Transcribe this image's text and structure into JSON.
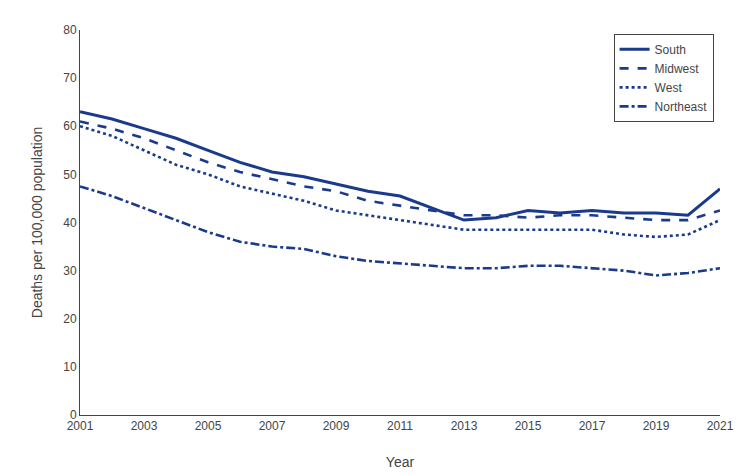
{
  "chart_data": {
    "type": "line",
    "x": [
      2001,
      2002,
      2003,
      2004,
      2005,
      2006,
      2007,
      2008,
      2009,
      2010,
      2011,
      2012,
      2013,
      2014,
      2015,
      2016,
      2017,
      2018,
      2019,
      2020,
      2021
    ],
    "series": [
      {
        "name": "South",
        "color": "#1a3a8c",
        "line_style": "solid",
        "values": [
          63.0,
          61.5,
          59.5,
          57.5,
          55.0,
          52.5,
          50.5,
          49.5,
          48.0,
          46.5,
          45.5,
          43.0,
          40.5,
          41.0,
          42.5,
          42.0,
          42.5,
          42.0,
          42.0,
          41.5,
          47.0
        ]
      },
      {
        "name": "Midwest",
        "color": "#1a3a8c",
        "line_style": "dashed",
        "values": [
          61.0,
          59.5,
          57.5,
          55.0,
          52.5,
          50.5,
          49.0,
          47.5,
          46.5,
          44.5,
          43.5,
          42.5,
          41.5,
          41.5,
          41.0,
          41.5,
          41.5,
          41.0,
          40.5,
          40.5,
          42.5
        ]
      },
      {
        "name": "West",
        "color": "#1a3a8c",
        "line_style": "dotted",
        "values": [
          60.0,
          58.0,
          55.0,
          52.0,
          50.0,
          47.5,
          46.0,
          44.5,
          42.5,
          41.5,
          40.5,
          39.5,
          38.5,
          38.5,
          38.5,
          38.5,
          38.5,
          37.5,
          37.0,
          37.5,
          40.5
        ]
      },
      {
        "name": "Northeast",
        "color": "#1a3a8c",
        "line_style": "dashdot",
        "values": [
          47.5,
          45.5,
          43.0,
          40.5,
          38.0,
          36.0,
          35.0,
          34.5,
          33.0,
          32.0,
          31.5,
          31.0,
          30.5,
          30.5,
          31.0,
          31.0,
          30.5,
          30.0,
          29.0,
          29.5,
          30.5
        ]
      }
    ],
    "xlabel": "Year",
    "ylabel": "Deaths per 100,000 population",
    "xlim": [
      2001,
      2021
    ],
    "xticks": [
      2001,
      2003,
      2005,
      2007,
      2009,
      2011,
      2013,
      2015,
      2017,
      2019,
      2021
    ],
    "ylim": [
      0,
      80
    ],
    "yticks": [
      0,
      10,
      20,
      30,
      40,
      50,
      60,
      70,
      80
    ],
    "grid": false,
    "legend": "upper right"
  }
}
